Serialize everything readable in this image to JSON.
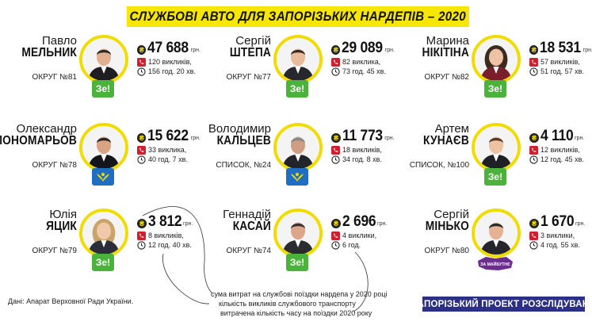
{
  "title": "СЛУЖБОВІ АВТО ДЛЯ ЗАПОРІЗЬКИХ НАРДЕПІВ – 2020",
  "currency_symbol": "₴",
  "currency_label": "грн.",
  "colors": {
    "accent_yellow": "#f7e600",
    "ring_yellow": "#f2dc00",
    "ze_green": "#4bb33b",
    "batkivshchyna_blue": "#1f6ec2",
    "project_navy": "#2b2f86"
  },
  "deputies": [
    {
      "first": "Павло",
      "last": "МЕЛЬНИК",
      "district": "ОКРУГ №81",
      "amount": "47 688",
      "trips": "120 викликів,",
      "time": "156 год. 20 хв.",
      "party": "ze"
    },
    {
      "first": "Сергій",
      "last": "ШТЕПА",
      "district": "ОКРУГ №77",
      "amount": "29 089",
      "trips": "82 виклика,",
      "time": "73 год. 45 хв.",
      "party": "ze"
    },
    {
      "first": "Марина",
      "last": "НІКІТІНА",
      "district": "ОКРУГ №82",
      "amount": "18 531",
      "trips": "57 викликів,",
      "time": "51 год. 57 хв.",
      "party": "ze"
    },
    {
      "first": "Олександр",
      "last": "ПОНОМАРЬОВ",
      "district": "ОКРУГ №78",
      "amount": "15 622",
      "trips": "33 виклика,",
      "time": "40 год. 7 хв.",
      "party": "batk"
    },
    {
      "first": "Володимир",
      "last": "КАЛЬЦЕВ",
      "district": "СПИСОК, №24",
      "amount": "11 773",
      "trips": "18 викликів,",
      "time": "34 год. 8 хв.",
      "party": "batk"
    },
    {
      "first": "Артем",
      "last": "КУНАЄВ",
      "district": "СПИСОК, №100",
      "amount": "4 110",
      "trips": "12 викликів,",
      "time": "12 год. 45 хв.",
      "party": "ze"
    },
    {
      "first": "Юлія",
      "last": "ЯЦИК",
      "district": "ОКРУГ №79",
      "amount": "3 812",
      "trips": "8 викликів,",
      "time": "12 год. 40 хв.",
      "party": "ze"
    },
    {
      "first": "Геннадій",
      "last": "КАСАЙ",
      "district": "ОКРУГ №74",
      "amount": "2 696",
      "trips": "4 виклики,",
      "time": "6 год.",
      "party": "ze"
    },
    {
      "first": "Сергій",
      "last": "МІНЬКО",
      "district": "ОКРУГ №80",
      "amount": "1 670",
      "trips": "3 виклики,",
      "time": "4 год. 55 хв.",
      "party": "zn"
    }
  ],
  "party_labels": {
    "ze": "Зе!",
    "zn": "ЗА МАЙБУТНЄ"
  },
  "legend": [
    "сума витрат на службові поїздки нардепа у 2020 році",
    "кількість викликів службового транспорту",
    "витрачена кількість часу на поїздки 2020 року"
  ],
  "source": "Дані: Апарат Верховної Ради України.",
  "project": "ЗАПОРІЗЬКИЙ ПРОЕКТ РОЗСЛІДУВАНЬ"
}
